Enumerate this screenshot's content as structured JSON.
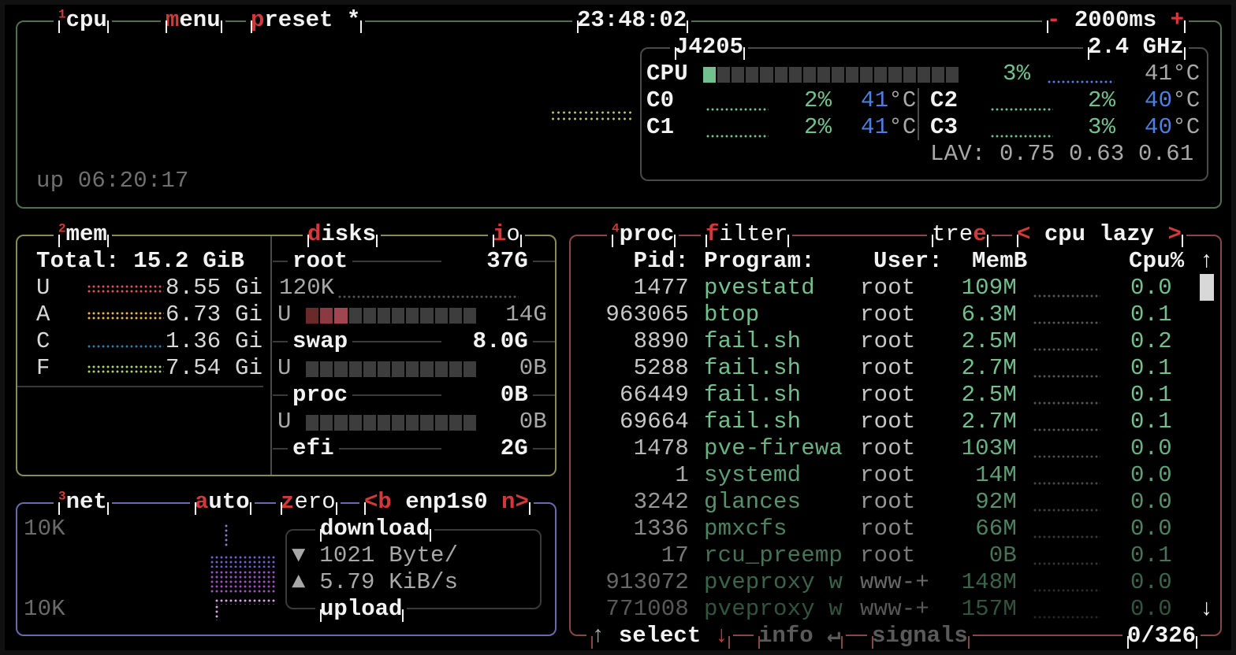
{
  "colors": {
    "cpu_border": "#4f6f4f",
    "mem_border": "#8a8a55",
    "net_border": "#6a68b0",
    "proc_border": "#8a4646",
    "accent": "#d03a3a",
    "green": "#72c08e",
    "blue": "#4f7fe0"
  },
  "cpu": {
    "box_number": "1",
    "title": "cpu",
    "menu_hotkey": "m",
    "menu_rest": "enu",
    "preset_hotkey": "p",
    "preset_rest": "reset *",
    "clock": "23:48:02",
    "interval_minus": "-",
    "interval": "2000ms",
    "interval_plus": "+",
    "uptime": "up 06:20:17",
    "model": "J4205",
    "freq": "2.4 GHz",
    "total": {
      "label": "CPU",
      "percent": "3%",
      "percent_value": 3,
      "temp": "41°C"
    },
    "cores": [
      {
        "label": "C0",
        "percent": "2%",
        "temp_num": "41",
        "temp_unit": "°C"
      },
      {
        "label": "C1",
        "percent": "2%",
        "temp_num": "41",
        "temp_unit": "°C"
      },
      {
        "label": "C2",
        "percent": "2%",
        "temp_num": "40",
        "temp_unit": "°C"
      },
      {
        "label": "C3",
        "percent": "3%",
        "temp_num": "40",
        "temp_unit": "°C"
      }
    ],
    "load_avg": "LAV: 0.75 0.63 0.61"
  },
  "mem": {
    "box_number": "2",
    "title": "mem",
    "total": "Total: 15.2 GiB",
    "rows": [
      {
        "label": "U",
        "value": "8.55 Gi",
        "color": "#e0525a"
      },
      {
        "label": "A",
        "value": "6.73 Gi",
        "color": "#e8b84a"
      },
      {
        "label": "C",
        "value": "1.36 Gi",
        "color": "#2f7fa8"
      },
      {
        "label": "F",
        "value": "7.54 Gi",
        "color": "#a8d860"
      }
    ]
  },
  "disks": {
    "hotkey": "d",
    "title_rest": "isks",
    "io_hotkey": "i",
    "io_rest": "o",
    "items": [
      {
        "name": "root",
        "size": "37G",
        "io": "120K",
        "used_label": "U",
        "used": "14G",
        "used_fraction": 0.28
      },
      {
        "name": "swap",
        "size": "8.0G",
        "used_label": "U",
        "used": "0B",
        "used_fraction": 0
      },
      {
        "name": "proc",
        "size": "0B",
        "used_label": "U",
        "used": "0B",
        "used_fraction": 0
      },
      {
        "name": "efi",
        "size": "2G"
      }
    ]
  },
  "net": {
    "box_number": "3",
    "title": "net",
    "auto_hotkey": "a",
    "auto_rest": "uto",
    "zero_hotkey": "z",
    "zero_rest": "ero",
    "prev": "<b",
    "interface": "enp1s0",
    "next": "n>",
    "scale_top": "10K",
    "scale_bottom": "10K",
    "download_label": "download",
    "upload_label": "upload",
    "download_icon": "triangle-down",
    "upload_icon": "triangle-up",
    "download_arrow": "▼",
    "upload_arrow": "▲",
    "download_rate": "1021 Byte/",
    "upload_rate": "5.79 KiB/s"
  },
  "proc": {
    "box_number": "4",
    "title": "proc",
    "filter_hotkey": "f",
    "filter_rest": "ilter",
    "tree_rest": "tre",
    "tree_hotkey": "e",
    "sort_prev": "<",
    "sort": "cpu lazy",
    "sort_next": ">",
    "headers": {
      "pid": "Pid:",
      "program": "Program:",
      "user": "User:",
      "mem": "MemB",
      "cpu": "Cpu%"
    },
    "scroll_up": "↑",
    "scroll_down": "↓",
    "rows": [
      {
        "pid": "1477",
        "program": "pvestatd",
        "user": "root",
        "mem": "109M",
        "cpu": "0.0"
      },
      {
        "pid": "963065",
        "program": "btop",
        "user": "root",
        "mem": "6.3M",
        "cpu": "0.1"
      },
      {
        "pid": "8890",
        "program": "fail.sh",
        "user": "root",
        "mem": "2.5M",
        "cpu": "0.2"
      },
      {
        "pid": "5288",
        "program": "fail.sh",
        "user": "root",
        "mem": "2.7M",
        "cpu": "0.1"
      },
      {
        "pid": "66449",
        "program": "fail.sh",
        "user": "root",
        "mem": "2.5M",
        "cpu": "0.1"
      },
      {
        "pid": "69664",
        "program": "fail.sh",
        "user": "root",
        "mem": "2.7M",
        "cpu": "0.1"
      },
      {
        "pid": "1478",
        "program": "pve-firewa",
        "user": "root",
        "mem": "103M",
        "cpu": "0.0"
      },
      {
        "pid": "1",
        "program": "systemd",
        "user": "root",
        "mem": "14M",
        "cpu": "0.0"
      },
      {
        "pid": "3242",
        "program": "glances",
        "user": "root",
        "mem": "92M",
        "cpu": "0.0"
      },
      {
        "pid": "1336",
        "program": "pmxcfs",
        "user": "root",
        "mem": "66M",
        "cpu": "0.0"
      },
      {
        "pid": "17",
        "program": "rcu_preemp",
        "user": "root",
        "mem": "0B",
        "cpu": "0.1"
      },
      {
        "pid": "913072",
        "program": "pveproxy w",
        "user": "www-+",
        "mem": "148M",
        "cpu": "0.0"
      },
      {
        "pid": "771008",
        "program": "pveproxy w",
        "user": "www-+",
        "mem": "157M",
        "cpu": "0.0"
      }
    ],
    "footer": {
      "up": "↑",
      "select": "select",
      "down": "↓",
      "info": "info",
      "enter": "↵",
      "signals": "signals",
      "count": "0/326"
    }
  }
}
